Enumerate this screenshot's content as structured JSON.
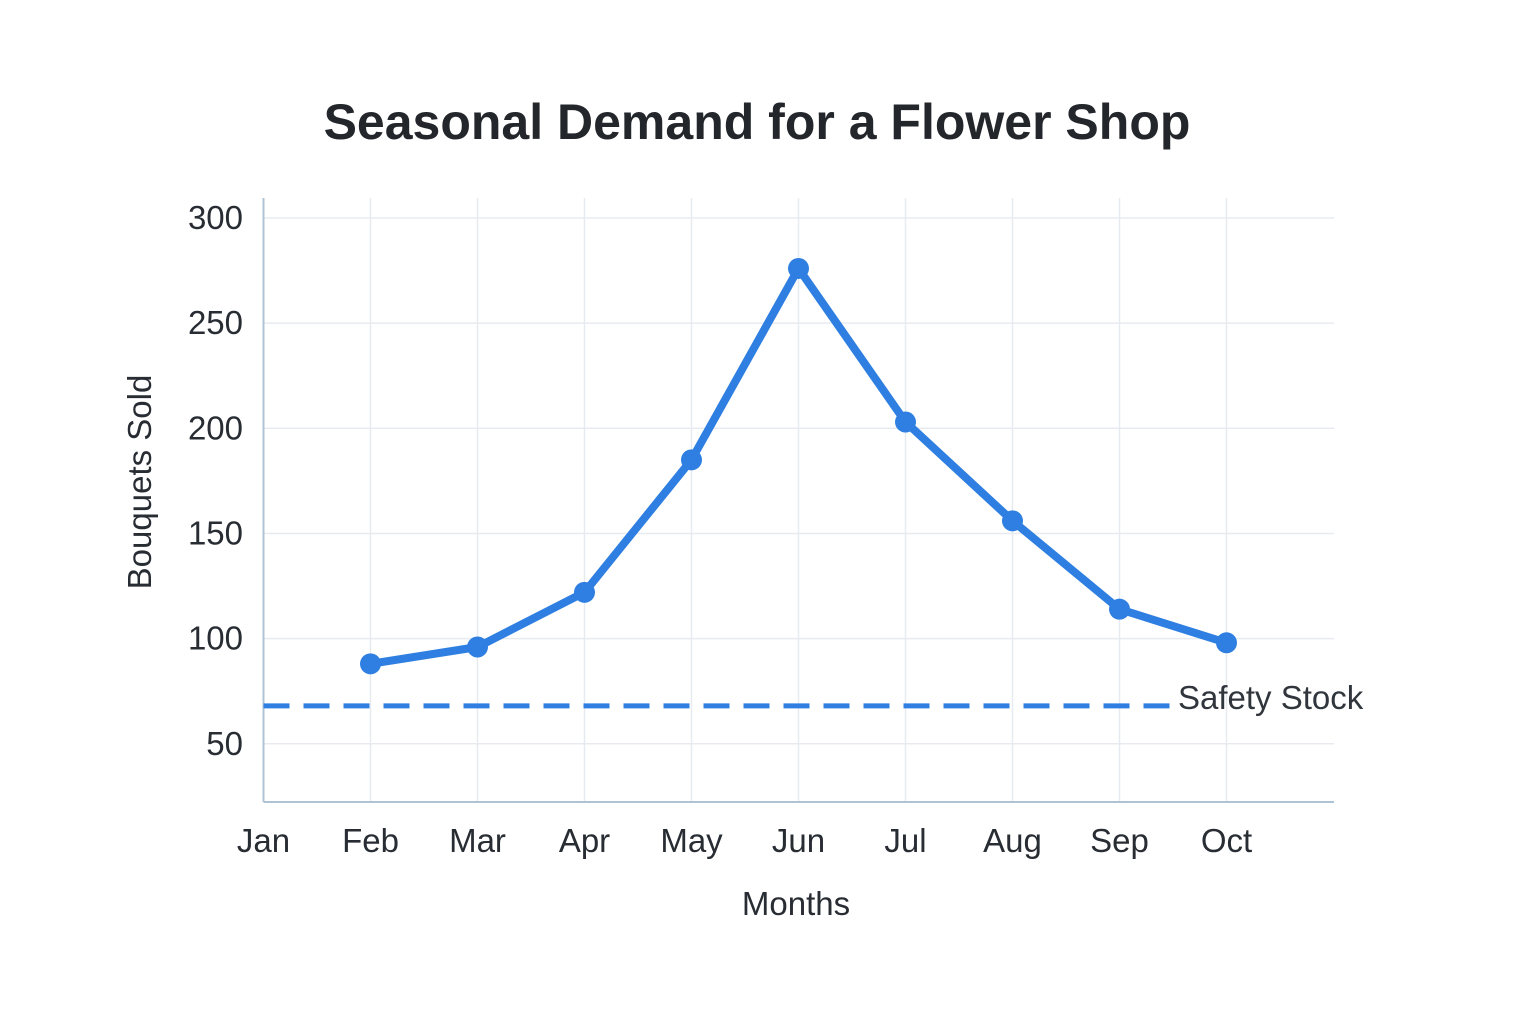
{
  "title": "Seasonal Demand for a Flower Shop",
  "chart_data": {
    "type": "line",
    "title": "Seasonal Demand for a Flower Shop",
    "xlabel": "Months",
    "ylabel": "Bouquets Sold",
    "categories": [
      "Jan",
      "Feb",
      "Mar",
      "Apr",
      "May",
      "Jun",
      "Jul",
      "Aug",
      "Sep",
      "Oct"
    ],
    "series": [
      {
        "name": "Bouquets Sold",
        "values": [
          null,
          88,
          96,
          122,
          185,
          276,
          203,
          156,
          114,
          98
        ],
        "color": "#2e7fe1",
        "marker": "circle",
        "line_style": "solid"
      }
    ],
    "yticks": [
      300,
      250,
      200,
      150,
      100,
      50
    ],
    "ylim": [
      22,
      300
    ],
    "grid": true,
    "legend_position": "none",
    "annotations": [
      {
        "type": "hline",
        "label": "Safety Stock",
        "value": 68,
        "style": "dashed",
        "color": "#2e7fe1"
      }
    ]
  },
  "colors": {
    "accent_blue": "#2e7fe1",
    "axis": "#afc3d6",
    "gridline": "#e7ebf0",
    "title_text": "#23262b",
    "label_text": "#282c33",
    "background": "#ffffff"
  }
}
